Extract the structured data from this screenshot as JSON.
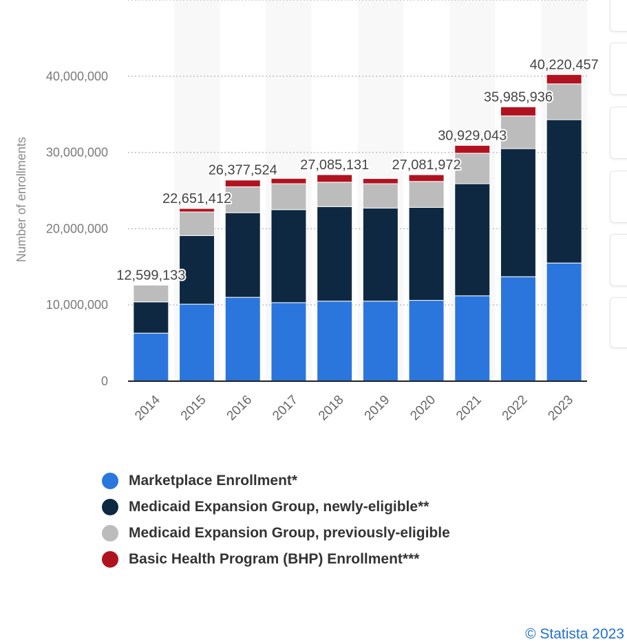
{
  "chart_data": {
    "type": "bar",
    "stacked": true,
    "categories": [
      "2014",
      "2015",
      "2016",
      "2017",
      "2018",
      "2019",
      "2020",
      "2021",
      "2022",
      "2023"
    ],
    "series": [
      {
        "name": "Marketplace Enrollment*",
        "color": "#2a76dd",
        "values": [
          6300000,
          10100000,
          11000000,
          10300000,
          10500000,
          10500000,
          10600000,
          11200000,
          13700000,
          15500000
        ]
      },
      {
        "name": "Medicaid Expansion Group, newly-eligible**",
        "color": "#0f2841",
        "values": [
          4100000,
          9000000,
          11100000,
          12200000,
          12400000,
          12200000,
          12200000,
          14700000,
          16800000,
          18800000
        ]
      },
      {
        "name": "Medicaid Expansion Group, previously-eligible",
        "color": "#bcbcbc",
        "values": [
          2199133,
          3100000,
          3400000,
          3400000,
          3200000,
          3200000,
          3400000,
          4000000,
          4300000,
          4700000
        ]
      },
      {
        "name": "Basic Health Program (BHP) Enrollment***",
        "color": "#b0131f",
        "values": [
          0,
          451412,
          877524,
          700000,
          985131,
          681972,
          881972,
          1029043,
          1185936,
          1220457
        ]
      }
    ],
    "totals": [
      "12,599,133",
      "22,651,412",
      "26,377,524",
      "",
      "27,085,131",
      "",
      "27,081,972",
      "30,929,043",
      "35,985,936",
      "40,220,457"
    ],
    "ylabel": "Number of enrollments",
    "ylim": [
      0,
      50000000
    ],
    "yticks": [
      0,
      10000000,
      20000000,
      30000000,
      40000000
    ],
    "ytick_labels": [
      "0",
      "10,000,000",
      "20,000,000",
      "30,000,000",
      "40,000,000"
    ],
    "grid": true,
    "legend_position": "bottom"
  },
  "credit": "© Statista 2023"
}
